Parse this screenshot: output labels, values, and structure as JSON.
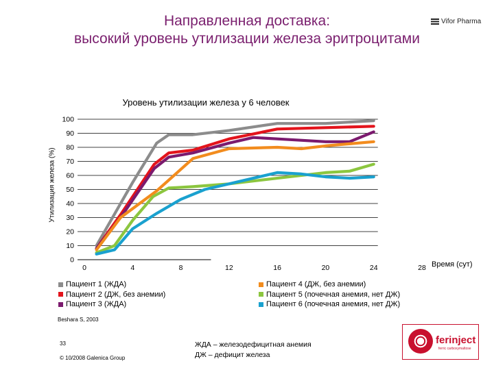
{
  "header": {
    "title_line1": "Направленная доставка:",
    "title_line2": "высокий уровень утилизации железа эритроцитами",
    "brand": "Vifor Pharma"
  },
  "chart_data": {
    "type": "line",
    "title": "Уровень утилизации железа у 6 человек",
    "ylabel": "Утилизация железа (%)",
    "xlabel": "Время (сут)",
    "x_ticks": [
      0,
      4,
      8,
      12,
      16,
      20,
      24,
      28
    ],
    "y_ticks": [
      0,
      10,
      20,
      30,
      40,
      50,
      60,
      70,
      80,
      90,
      100
    ],
    "xlim": [
      0,
      28
    ],
    "ylim": [
      0,
      100
    ],
    "grid": "horizontal",
    "series": [
      {
        "name": "Пациент 1 (ЖДА)",
        "color": "#8c8c8c",
        "x": [
          1,
          4,
          6,
          7,
          9,
          12,
          16,
          20,
          24
        ],
        "y": [
          10,
          55,
          83,
          89,
          89,
          92,
          97,
          97,
          99
        ]
      },
      {
        "name": "Пациент 2 (ДЖ, без анемии)",
        "color": "#e3141c",
        "x": [
          1,
          3,
          5.8,
          7,
          9,
          12,
          16,
          20,
          24
        ],
        "y": [
          8,
          32,
          68,
          76,
          78,
          86,
          93,
          94,
          95
        ]
      },
      {
        "name": "Пациент 3 (ЖДА)",
        "color": "#7b1a6e",
        "x": [
          1,
          3,
          5.8,
          7,
          9,
          12,
          14,
          16,
          20,
          22,
          24
        ],
        "y": [
          8,
          30,
          65,
          73,
          76,
          83,
          87,
          86,
          84,
          84,
          91
        ]
      },
      {
        "name": "Пациент 4 (ДЖ, без анемии)",
        "color": "#f28c1e",
        "x": [
          1,
          3,
          6,
          9,
          12,
          16,
          18,
          20,
          24
        ],
        "y": [
          7,
          30,
          49,
          72,
          79,
          80,
          79,
          81,
          84
        ]
      },
      {
        "name": "Пациент 5 (почечная анемия, нет ДЖ)",
        "color": "#8cc63f",
        "x": [
          1,
          2.5,
          4,
          5.7,
          7,
          9,
          12,
          16,
          20,
          22,
          24
        ],
        "y": [
          5,
          10,
          28,
          45,
          51,
          52,
          54,
          58,
          62,
          63,
          68
        ]
      },
      {
        "name": "Пациент 6 (почечная анемия, нет ДЖ)",
        "color": "#1aa1cf",
        "x": [
          1,
          2.5,
          4,
          6,
          8,
          10,
          12,
          16,
          18,
          20,
          22,
          24
        ],
        "y": [
          4,
          7,
          22,
          33,
          43,
          50,
          54,
          62,
          61,
          59,
          58,
          59
        ]
      }
    ]
  },
  "footer": {
    "source": "Beshara S, 2003",
    "slide_number": "33",
    "copyright": "© 10/2008 Galenica Group",
    "abbr_line1": "ЖДА – железодефицитная анемия",
    "abbr_line2": "ДЖ – дефицит железа",
    "logo_text": "ferinject",
    "logo_sub": "ferric carboxymaltose"
  }
}
